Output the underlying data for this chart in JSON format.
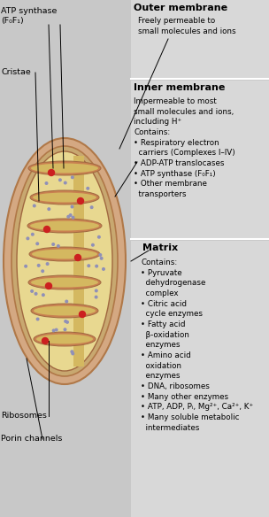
{
  "bg_color": "#c8c8c8",
  "panel_bg": "#d8d8d8",
  "outer_membrane_title": "Outer membrane",
  "outer_membrane_text": "Freely permeable to\nsmall molecules and ions",
  "inner_membrane_title": "Inner membrane",
  "inner_membrane_text": "Impermeable to most\nsmall molecules and ions,\nincluding H⁺\nContains:\n• Respiratory electron\n  carriers (Complexes I–IV)\n• ADP-ATP translocases\n• ATP synthase (F₀F₁)\n• Other membrane\n  transporters",
  "matrix_title": "Matrix",
  "matrix_text": "Contains:\n• Pyruvate\n  dehydrogenase\n  complex\n• Citric acid\n  cycle enzymes\n• Fatty acid\n  β-oxidation\n  enzymes\n• Amino acid\n  oxidation\n  enzymes\n• DNA, ribosomes\n• Many other enzymes\n• ATP, ADP, Pᵢ, Mg²⁺, Ca²⁺, K⁺\n• Many soluble metabolic\n  intermediates",
  "label_atp": "ATP synthase\n(F₀F₁)",
  "label_cristae": "Cristae",
  "label_ribosomes": "Ribosomes",
  "label_porin": "Porin channels",
  "outer_fill": "#d4a882",
  "outer_edge": "#b07848",
  "inner_fill": "#c8906a",
  "inner_edge": "#a06840",
  "intermembrane_fill": "#c8a870",
  "matrix_fill": "#e8d890",
  "crista_membrane": "#c88050",
  "crista_lumen": "#d4b860",
  "crista_inner_fill": "#dcc878",
  "dot_color": "#9090b8",
  "ribosome_color": "#cc2020",
  "divider_color": "#ffffff"
}
